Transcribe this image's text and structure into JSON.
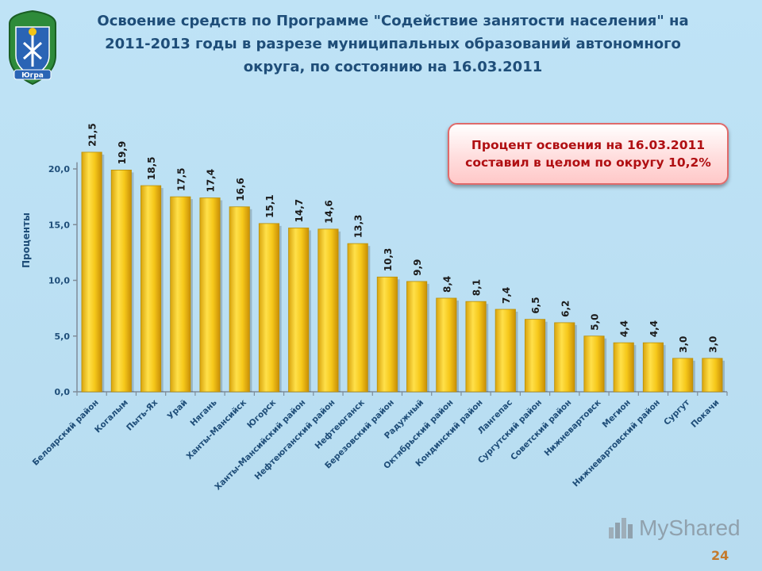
{
  "slide": {
    "title_lines": [
      "Освоение средств по Программе \"Содействие занятости населения\" на",
      "2011-2013 годы в разрезе муниципальных образований автономного",
      "округа,  по состоянию на  16.03.2011"
    ],
    "emblem_text": "Югра",
    "callout_lines": [
      "Процент освоения на 16.03.2011",
      "составил в целом по округу 10,2%"
    ],
    "watermark_text": "MyShared",
    "page_number": "24",
    "colors": {
      "bar": "#f2c418",
      "bar_edge": "#b8900a",
      "axis_text": "#1f4e79",
      "title": "#1f4e79",
      "callout_text": "#b00f12"
    }
  },
  "chart_data": {
    "type": "bar",
    "ylabel": "Проценты",
    "xlabel": "",
    "ylim": [
      0,
      20
    ],
    "yticks": [
      0,
      5,
      10,
      15,
      20
    ],
    "ytick_labels": [
      "0,0",
      "5,0",
      "10,0",
      "15,0",
      "20,0"
    ],
    "grid": false,
    "categories": [
      "Белоярский район",
      "Когалым",
      "Пыть-Ях",
      "Урай",
      "Нягань",
      "Ханты-Мансийск",
      "Югорск",
      "Ханты-Мансийский район",
      "Нефтеюганский район",
      "Нефтеюганск",
      "Березовский район",
      "Радужный",
      "Октябрьский район",
      "Кондинский район",
      "Лангепас",
      "Сургутский район",
      "Советский район",
      "Нижневартовск",
      "Мегион",
      "Нижневартовский район",
      "Сургут",
      "Покачи"
    ],
    "values": [
      21.5,
      19.9,
      18.5,
      17.5,
      17.4,
      16.6,
      15.1,
      14.7,
      14.6,
      13.3,
      10.3,
      9.9,
      8.4,
      8.1,
      7.4,
      6.5,
      6.2,
      5.0,
      4.4,
      4.4,
      3.0,
      3.0
    ],
    "value_labels": [
      "21,5",
      "19,9",
      "18,5",
      "17,5",
      "17,4",
      "16,6",
      "15,1",
      "14,7",
      "14,6",
      "13,3",
      "10,3",
      "9,9",
      "8,4",
      "8,1",
      "7,4",
      "6,5",
      "6,2",
      "5,0",
      "4,4",
      "4,4",
      "3,0",
      "3,0"
    ]
  }
}
